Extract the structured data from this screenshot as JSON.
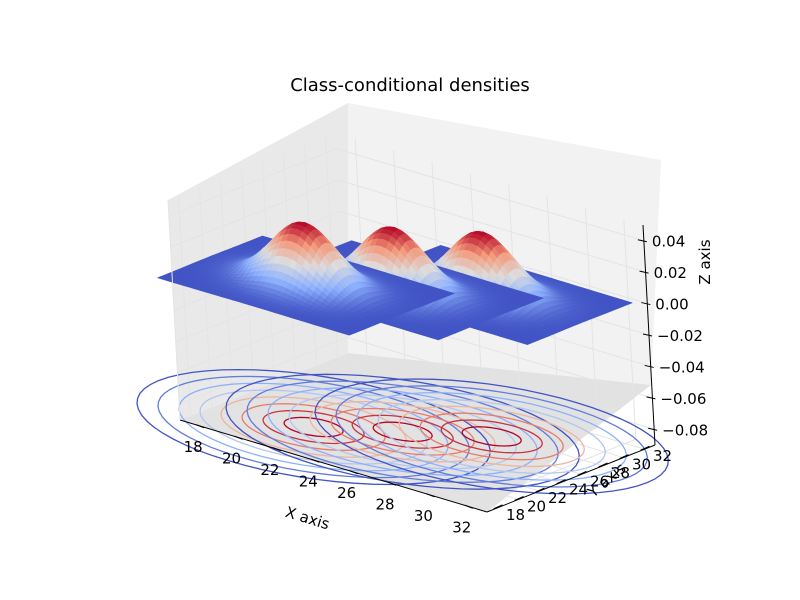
{
  "chart_data": {
    "type": "surface3d",
    "title": "Class-conditional densities",
    "xlabel": "X axis",
    "ylabel": "Y axis",
    "zlabel": "Z axis",
    "x_ticks": [
      "18",
      "20",
      "22",
      "24",
      "26",
      "28",
      "30",
      "32"
    ],
    "y_ticks": [
      "18",
      "20",
      "22",
      "24",
      "26",
      "28",
      "30",
      "32"
    ],
    "z_ticks": [
      "0.04",
      "0.02",
      "0.00",
      "−0.02",
      "−0.04",
      "−0.06",
      "−0.08"
    ],
    "xlim": [
      17,
      33
    ],
    "ylim": [
      17,
      33
    ],
    "zlim": [
      -0.09,
      0.05
    ],
    "colormap": "coolwarm",
    "series": [
      {
        "center_x": 21.5,
        "center_y": 21.5,
        "peak": 0.04
      },
      {
        "center_x": 24.5,
        "center_y": 24.5,
        "peak": 0.04
      },
      {
        "center_x": 27.5,
        "center_y": 27.5,
        "peak": 0.04
      }
    ],
    "contour_offset_z": -0.09,
    "colors": {
      "low": "#3b4cc0",
      "mid": "#dddddd",
      "high": "#b40426"
    }
  }
}
